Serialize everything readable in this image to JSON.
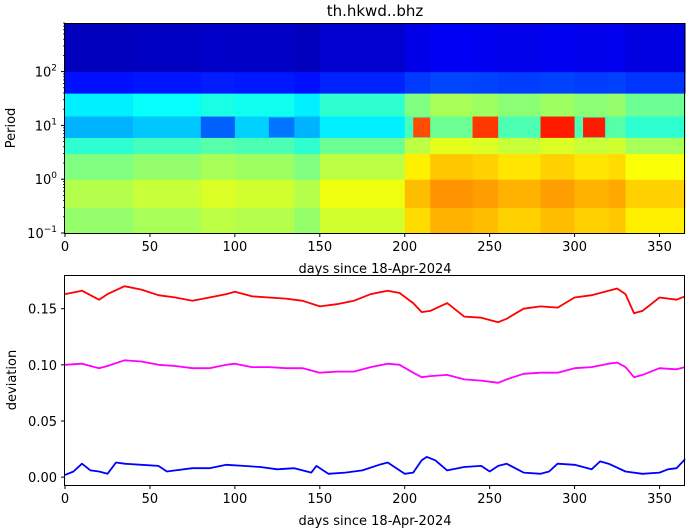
{
  "chart_data": [
    {
      "type": "heatmap",
      "title": "th.hkwd..bhz",
      "xlabel": "days since 18-Apr-2024",
      "ylabel": "Period",
      "xlim": [
        0,
        365
      ],
      "ylim": [
        0.1,
        800
      ],
      "y_scale": "log",
      "x_ticks": [
        0,
        50,
        100,
        150,
        200,
        250,
        300,
        350
      ],
      "x_tick_labels": [
        "0",
        "50",
        "100",
        "150",
        "200",
        "250",
        "300",
        "350"
      ],
      "y_ticks": [
        0.1,
        1,
        10,
        100
      ],
      "y_tick_labels": [
        {
          "base": "10",
          "exp": "−1"
        },
        {
          "base": "10",
          "exp": "0"
        },
        {
          "base": "10",
          "exp": "1"
        },
        {
          "base": "10",
          "exp": "2"
        }
      ],
      "colormap": "jet",
      "color_range": [
        0,
        1
      ],
      "x_bands": [
        0,
        40,
        80,
        100,
        135,
        150,
        200,
        215,
        240,
        255,
        280,
        300,
        320,
        330,
        365
      ],
      "band_offsets": [
        0.0,
        0.02,
        0.04,
        0.03,
        0.0,
        0.06,
        0.14,
        0.18,
        0.17,
        0.15,
        0.17,
        0.15,
        0.16,
        0.12
      ],
      "period_rows": [
        {
          "period": [
            0.1,
            0.3
          ],
          "level": 0.52
        },
        {
          "period": [
            0.3,
            1
          ],
          "level": 0.55
        },
        {
          "period": [
            1,
            3
          ],
          "level": 0.5
        },
        {
          "period": [
            3,
            6
          ],
          "level": 0.42
        },
        {
          "period": [
            6,
            15
          ],
          "level": 0.3
        },
        {
          "period": [
            15,
            40
          ],
          "level": 0.36
        },
        {
          "period": [
            40,
            100
          ],
          "level": 0.14
        },
        {
          "period": [
            100,
            800
          ],
          "level": 0.06
        }
      ],
      "hot_spots": [
        {
          "x": [
            205,
            215
          ],
          "period": [
            6,
            14
          ],
          "level": 0.8
        },
        {
          "x": [
            240,
            252
          ],
          "period": [
            6,
            14
          ],
          "level": 0.82
        },
        {
          "x": [
            280,
            290
          ],
          "period": [
            6,
            14
          ],
          "level": 0.85
        },
        {
          "x": [
            305,
            318
          ],
          "period": [
            6,
            14
          ],
          "level": 0.85
        },
        {
          "x": [
            80,
            95
          ],
          "period": [
            6,
            14
          ],
          "level": 0.22
        },
        {
          "x": [
            120,
            135
          ],
          "period": [
            6,
            14
          ],
          "level": 0.24
        }
      ]
    },
    {
      "type": "line",
      "xlabel": "days since 18-Apr-2024",
      "ylabel": "deviation",
      "xlim": [
        0,
        365
      ],
      "ylim": [
        -0.007,
        0.18
      ],
      "x_ticks": [
        0,
        50,
        100,
        150,
        200,
        250,
        300,
        350
      ],
      "x_tick_labels": [
        "0",
        "50",
        "100",
        "150",
        "200",
        "250",
        "300",
        "350"
      ],
      "y_ticks": [
        0,
        0.05,
        0.1,
        0.15
      ],
      "y_tick_labels": [
        "0.00",
        "0.05",
        "0.10",
        "0.15"
      ],
      "series": [
        {
          "color": "#ff0000",
          "x": [
            0,
            10,
            20,
            25,
            35,
            45,
            55,
            65,
            75,
            85,
            95,
            100,
            110,
            120,
            130,
            140,
            150,
            160,
            170,
            180,
            190,
            197,
            205,
            210,
            215,
            225,
            235,
            245,
            255,
            260,
            270,
            280,
            290,
            300,
            310,
            320,
            325,
            330,
            335,
            340,
            350,
            360,
            365
          ],
          "y": [
            0.163,
            0.166,
            0.158,
            0.163,
            0.17,
            0.167,
            0.162,
            0.16,
            0.157,
            0.16,
            0.163,
            0.165,
            0.161,
            0.16,
            0.159,
            0.157,
            0.152,
            0.154,
            0.157,
            0.163,
            0.166,
            0.164,
            0.155,
            0.147,
            0.148,
            0.155,
            0.143,
            0.142,
            0.138,
            0.141,
            0.15,
            0.152,
            0.151,
            0.16,
            0.162,
            0.166,
            0.168,
            0.163,
            0.146,
            0.148,
            0.16,
            0.158,
            0.161
          ]
        },
        {
          "color": "#ff00ff",
          "x": [
            0,
            10,
            20,
            25,
            35,
            45,
            55,
            65,
            75,
            85,
            95,
            100,
            110,
            120,
            130,
            140,
            150,
            160,
            170,
            180,
            190,
            197,
            205,
            210,
            215,
            225,
            235,
            245,
            255,
            260,
            270,
            280,
            290,
            300,
            310,
            320,
            325,
            330,
            335,
            340,
            350,
            360,
            365
          ],
          "y": [
            0.1,
            0.101,
            0.097,
            0.099,
            0.104,
            0.103,
            0.1,
            0.099,
            0.097,
            0.097,
            0.1,
            0.101,
            0.098,
            0.098,
            0.097,
            0.097,
            0.093,
            0.094,
            0.094,
            0.098,
            0.101,
            0.1,
            0.093,
            0.089,
            0.09,
            0.091,
            0.087,
            0.086,
            0.084,
            0.087,
            0.092,
            0.093,
            0.093,
            0.097,
            0.098,
            0.101,
            0.102,
            0.098,
            0.089,
            0.091,
            0.097,
            0.096,
            0.098
          ]
        },
        {
          "color": "#0000ff",
          "x": [
            0,
            5,
            10,
            15,
            20,
            25,
            30,
            35,
            45,
            55,
            60,
            65,
            75,
            85,
            95,
            105,
            115,
            125,
            135,
            145,
            148,
            155,
            165,
            175,
            185,
            190,
            200,
            205,
            210,
            213,
            218,
            225,
            235,
            245,
            250,
            255,
            260,
            270,
            280,
            285,
            290,
            300,
            310,
            315,
            320,
            330,
            340,
            350,
            355,
            360,
            365
          ],
          "y": [
            0.002,
            0.005,
            0.012,
            0.006,
            0.005,
            0.003,
            0.013,
            0.012,
            0.011,
            0.01,
            0.005,
            0.006,
            0.008,
            0.008,
            0.011,
            0.01,
            0.009,
            0.007,
            0.008,
            0.004,
            0.01,
            0.003,
            0.004,
            0.006,
            0.011,
            0.013,
            0.003,
            0.004,
            0.015,
            0.018,
            0.015,
            0.006,
            0.009,
            0.01,
            0.005,
            0.01,
            0.012,
            0.004,
            0.003,
            0.005,
            0.012,
            0.011,
            0.007,
            0.014,
            0.012,
            0.005,
            0.003,
            0.004,
            0.007,
            0.008,
            0.016
          ]
        }
      ]
    }
  ]
}
